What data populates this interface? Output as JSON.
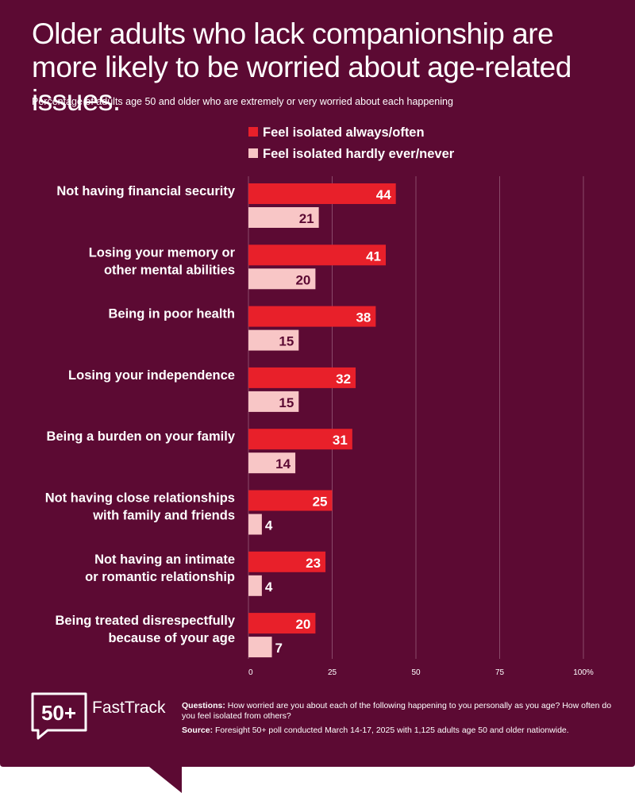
{
  "title": "Older adults who lack companionship are more likely to be worried about age-related issues.",
  "subtitle": "Percentage of adults age 50 and older who are extremely or very worried about each happening",
  "colors": {
    "background": "#5c0a33",
    "series_isolated": "#e8202a",
    "series_not_isolated": "#f8c6c6",
    "dark_value_text": "#5c0a33",
    "grid": "#8a4a6a"
  },
  "chart_data": {
    "type": "bar",
    "orientation": "horizontal",
    "categories": [
      "Not having financial security",
      "Losing your memory or other mental abilities",
      "Being in poor health",
      "Losing your independence",
      "Being a burden on your family",
      "Not having close relationships with family and friends",
      "Not having an intimate or romantic relationship",
      "Being treated disrespectfully because of your age"
    ],
    "category_lines": [
      [
        "Not having financial security"
      ],
      [
        "Losing your memory or",
        "other mental abilities"
      ],
      [
        "Being in poor health"
      ],
      [
        "Losing your independence"
      ],
      [
        "Being a burden on your family"
      ],
      [
        "Not having close relationships",
        "with family and friends"
      ],
      [
        "Not having an intimate",
        "or romantic relationship"
      ],
      [
        "Being treated disrespectfully",
        "because of your age"
      ]
    ],
    "series": [
      {
        "name": "Feel isolated always/often",
        "values": [
          44,
          41,
          38,
          32,
          31,
          25,
          23,
          20
        ]
      },
      {
        "name": "Feel isolated hardly ever/never",
        "values": [
          21,
          20,
          15,
          15,
          14,
          4,
          4,
          7
        ]
      }
    ],
    "xlim": [
      0,
      100
    ],
    "ticks": [
      0,
      25,
      50,
      75,
      100
    ],
    "tick_labels": [
      "0",
      "25",
      "50",
      "75",
      "100%"
    ],
    "grid": true,
    "legend_position": "top"
  },
  "logo": {
    "mark": "50+",
    "name": "FastTrack",
    "icon": "speech-bubble-icon"
  },
  "footer": {
    "questions_label": "Questions:",
    "questions_text": "How worried are you about each of the following happening to you personally as you age? How often do you feel isolated from others?",
    "source_label": "Source:",
    "source_text": "Foresight 50+ poll conducted March 14-17, 2025 with 1,125 adults age 50 and older nationwide."
  }
}
